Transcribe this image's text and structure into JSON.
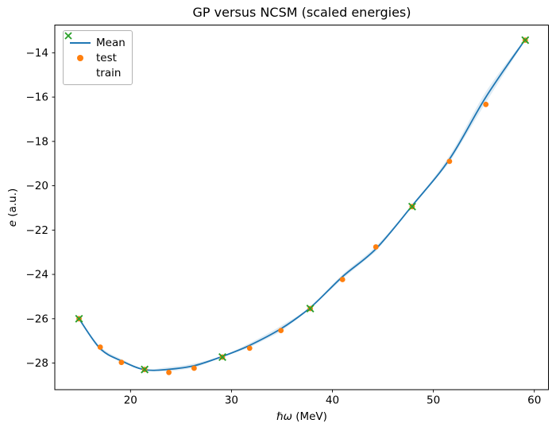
{
  "figure": {
    "title": "GP versus NCSM (scaled energies)",
    "xlabel_symbol": "ℏω",
    "xlabel_unit": " (MeV)",
    "ylabel_symbol": "e",
    "ylabel_unit": " (a.u.)"
  },
  "chart_data": {
    "type": "line",
    "title": "GP versus NCSM (scaled energies)",
    "xlabel": "ℏω (MeV)",
    "ylabel": "e (a.u.)",
    "xlim": [
      12.5,
      61.4
    ],
    "ylim": [
      -29.2,
      -12.75
    ],
    "x_ticks": [
      20,
      30,
      40,
      50,
      60
    ],
    "x_tick_labels": [
      "20",
      "30",
      "40",
      "50",
      "60"
    ],
    "y_ticks": [
      -14,
      -16,
      -18,
      -20,
      -22,
      -24,
      -26,
      -28
    ],
    "y_tick_labels": [
      "−14",
      "−16",
      "−18",
      "−20",
      "−22",
      "−24",
      "−26",
      "−28"
    ],
    "grid": false,
    "legend": {
      "position": "upper-left",
      "entries": [
        {
          "label": "Mean",
          "marker": "line",
          "color": "#1f77b4"
        },
        {
          "label": "test",
          "marker": "circle",
          "color": "#ff7f0e"
        },
        {
          "label": "train",
          "marker": "x",
          "color": "#2ca02c"
        }
      ]
    },
    "series": [
      {
        "name": "Mean",
        "type": "line",
        "color": "#1f77b4",
        "x": [
          14.9,
          17.0,
          19.1,
          21.4,
          23.8,
          26.3,
          29.1,
          31.8,
          34.9,
          37.8,
          41.0,
          44.3,
          47.9,
          51.6,
          55.2,
          59.1
        ],
        "y": [
          -26.0,
          -27.35,
          -27.9,
          -28.3,
          -28.28,
          -28.12,
          -27.7,
          -27.2,
          -26.45,
          -25.5,
          -24.1,
          -22.85,
          -20.9,
          -18.8,
          -16.0,
          -13.4
        ],
        "band_sigma": [
          0.04,
          0.1,
          0.08,
          0.04,
          0.1,
          0.1,
          0.04,
          0.1,
          0.13,
          0.04,
          0.1,
          0.12,
          0.05,
          0.16,
          0.24,
          0.04
        ],
        "band_opacity": 0.15
      },
      {
        "name": "test",
        "type": "scatter",
        "marker": "circle",
        "color": "#ff7f0e",
        "x": [
          14.9,
          17.0,
          19.1,
          21.4,
          23.8,
          26.3,
          29.1,
          31.8,
          34.9,
          37.8,
          41.0,
          44.3,
          47.9,
          51.6,
          55.2,
          59.1
        ],
        "y": [
          -26.0,
          -27.28,
          -27.97,
          -28.29,
          -28.42,
          -28.23,
          -27.73,
          -27.33,
          -26.53,
          -25.54,
          -24.23,
          -22.76,
          -20.94,
          -18.9,
          -16.33,
          -13.43
        ]
      },
      {
        "name": "train",
        "type": "scatter",
        "marker": "x",
        "color": "#2ca02c",
        "x": [
          14.9,
          21.4,
          29.1,
          37.8,
          47.9,
          59.1
        ],
        "y": [
          -26.0,
          -28.29,
          -27.73,
          -25.54,
          -20.94,
          -13.43
        ]
      }
    ]
  }
}
